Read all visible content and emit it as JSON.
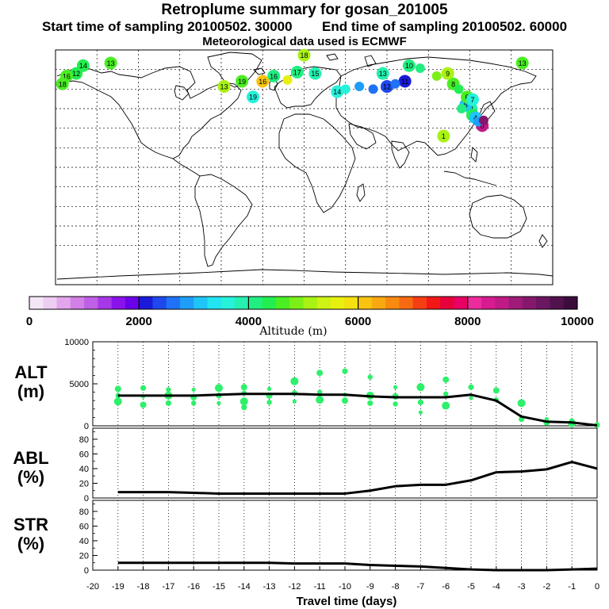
{
  "header": {
    "title": "Retroplume summary for gosan_201005",
    "start_label": "Start time of sampling 20100502. 30000",
    "end_label": "End time of sampling 20100502. 60000",
    "met_label": "Meteorological data used is ECMWF"
  },
  "colorbar": {
    "min": 0,
    "max": 10000,
    "tick_labels": [
      "0",
      "2000",
      "4000",
      "6000",
      "8000",
      "10000"
    ],
    "label": "Altitude (m)",
    "colors": [
      "#f5e6f7",
      "#eecdf2",
      "#e2a6ec",
      "#d27fe6",
      "#c060e6",
      "#a738e8",
      "#8a12eb",
      "#6a00ea",
      "#1a1ad8",
      "#1e48ee",
      "#1f72f5",
      "#1e9ef8",
      "#1ec6f7",
      "#22e4f2",
      "#26f2da",
      "#24f0b0",
      "#20ee80",
      "#22ee50",
      "#4aee22",
      "#7cf016",
      "#a8f214",
      "#cef214",
      "#e8f010",
      "#f4e010",
      "#f8c410",
      "#f8a810",
      "#f88a10",
      "#f66a12",
      "#f63e14",
      "#f21818",
      "#e8003c",
      "#e80064",
      "#ec2c9c",
      "#d61a90",
      "#c01a86",
      "#a01a7a",
      "#84186c",
      "#6a1660",
      "#52124e",
      "#3c0c3c"
    ]
  },
  "map": {
    "plume_points": [
      {
        "lon": 101,
        "lat": 24,
        "alt": 5000,
        "label": "1"
      },
      {
        "lon": 121,
        "lat": 45,
        "alt": 3900,
        "label": "2"
      },
      {
        "lon": 122,
        "lat": 40,
        "alt": 4400,
        "label": "3"
      },
      {
        "lon": 124,
        "lat": 38,
        "alt": 3000,
        "label": "4"
      },
      {
        "lon": 117,
        "lat": 48,
        "alt": 3200,
        "label": "5"
      },
      {
        "lon": 118,
        "lat": 54,
        "alt": 4500,
        "label": "6"
      },
      {
        "lon": 122,
        "lat": 52,
        "alt": 3600,
        "label": "7"
      },
      {
        "lon": 108,
        "lat": 64,
        "alt": 4600,
        "label": "8"
      },
      {
        "lon": 104,
        "lat": 72,
        "alt": 5200,
        "label": "9"
      },
      {
        "lon": 76,
        "lat": 78,
        "alt": 4200,
        "label": "10"
      },
      {
        "lon": 73,
        "lat": 66,
        "alt": 2200,
        "label": "11"
      },
      {
        "lon": 60,
        "lat": 62,
        "alt": 2300,
        "label": "12"
      },
      {
        "lon": 57,
        "lat": 72,
        "alt": 3800,
        "label": "13"
      },
      {
        "lon": 24,
        "lat": 58,
        "alt": 3700,
        "label": "14"
      },
      {
        "lon": 8,
        "lat": 72,
        "alt": 3900,
        "label": "15"
      },
      {
        "lon": -22,
        "lat": 70,
        "alt": 4100,
        "label": "16"
      },
      {
        "lon": -5,
        "lat": 73,
        "alt": 4000,
        "label": "17"
      },
      {
        "lon": 0,
        "lat": 86,
        "alt": 5200,
        "label": "18"
      },
      {
        "lon": -37,
        "lat": 54,
        "alt": 3500,
        "label": "19"
      },
      {
        "lon": 129,
        "lat": 32,
        "alt": 8600,
        "label": "0"
      },
      {
        "lon": 126,
        "lat": 35,
        "alt": 2800,
        "label": ""
      },
      {
        "lon": 114,
        "lat": 45,
        "alt": 4000,
        "label": ""
      },
      {
        "lon": 112,
        "lat": 60,
        "alt": 4300,
        "label": ""
      },
      {
        "lon": 84,
        "lat": 76,
        "alt": 4200,
        "label": ""
      },
      {
        "lon": 66,
        "lat": 64,
        "alt": 2500,
        "label": ""
      },
      {
        "lon": 50,
        "lat": 60,
        "alt": 2600,
        "label": ""
      },
      {
        "lon": 40,
        "lat": 62,
        "alt": 2800,
        "label": ""
      },
      {
        "lon": 30,
        "lat": 60,
        "alt": 3600,
        "label": ""
      },
      {
        "lon": 96,
        "lat": 70,
        "alt": 4900,
        "label": ""
      },
      {
        "lon": 130,
        "lat": 36,
        "alt": 9200,
        "label": ""
      },
      {
        "lon": -160,
        "lat": 78,
        "alt": 4300,
        "label": "14"
      },
      {
        "lon": -140,
        "lat": 80,
        "alt": 4500,
        "label": "13"
      },
      {
        "lon": -165,
        "lat": 72,
        "alt": 4400,
        "label": "12"
      },
      {
        "lon": -172,
        "lat": 70,
        "alt": 4600,
        "label": "16"
      },
      {
        "lon": -175,
        "lat": 64,
        "alt": 4700,
        "label": "18"
      },
      {
        "lon": 158,
        "lat": 80,
        "alt": 4600,
        "label": "13"
      },
      {
        "lon": -45,
        "lat": 66,
        "alt": 4700,
        "label": "19"
      },
      {
        "lon": -58,
        "lat": 62,
        "alt": 5000,
        "label": "13"
      },
      {
        "lon": -30,
        "lat": 66,
        "alt": 6200,
        "label": "16"
      },
      {
        "lon": -12,
        "lat": 67,
        "alt": 5600,
        "label": ""
      }
    ]
  },
  "panels": {
    "alt": {
      "label_line1": "ALT",
      "label_line2": "(m)",
      "ymin": 0,
      "ymax": 10000,
      "tick_labels": [
        "0",
        "5000",
        "10000"
      ],
      "mean_x": [
        -19,
        -18,
        -17,
        -16,
        -15,
        -14,
        -13,
        -12,
        -11,
        -10,
        -9,
        -8,
        -7,
        -6,
        -5,
        -4,
        -3,
        -2,
        -1,
        0
      ],
      "mean_y": [
        3600,
        3600,
        3600,
        3600,
        3700,
        3800,
        3800,
        3800,
        3700,
        3700,
        3500,
        3400,
        3400,
        3400,
        3700,
        3000,
        1100,
        500,
        400,
        50
      ],
      "scatter": [
        {
          "x": -19,
          "y": 4400
        },
        {
          "x": -19,
          "y": 3600
        },
        {
          "x": -19,
          "y": 2900
        },
        {
          "x": -18,
          "y": 4500
        },
        {
          "x": -18,
          "y": 3500
        },
        {
          "x": -18,
          "y": 2500
        },
        {
          "x": -17,
          "y": 4300
        },
        {
          "x": -17,
          "y": 3600
        },
        {
          "x": -17,
          "y": 2700
        },
        {
          "x": -16,
          "y": 4300
        },
        {
          "x": -16,
          "y": 3400
        },
        {
          "x": -16,
          "y": 2700
        },
        {
          "x": -15,
          "y": 4500
        },
        {
          "x": -15,
          "y": 3600
        },
        {
          "x": -15,
          "y": 2700
        },
        {
          "x": -14,
          "y": 4600
        },
        {
          "x": -14,
          "y": 3900
        },
        {
          "x": -14,
          "y": 2900
        },
        {
          "x": -14,
          "y": 2200
        },
        {
          "x": -13,
          "y": 4400
        },
        {
          "x": -13,
          "y": 3600
        },
        {
          "x": -13,
          "y": 2800
        },
        {
          "x": -12,
          "y": 5300
        },
        {
          "x": -12,
          "y": 3900
        },
        {
          "x": -12,
          "y": 2900
        },
        {
          "x": -11,
          "y": 6300
        },
        {
          "x": -11,
          "y": 4000
        },
        {
          "x": -11,
          "y": 3100
        },
        {
          "x": -10,
          "y": 6500
        },
        {
          "x": -10,
          "y": 3700
        },
        {
          "x": -10,
          "y": 3000
        },
        {
          "x": -9,
          "y": 5800
        },
        {
          "x": -9,
          "y": 3600
        },
        {
          "x": -9,
          "y": 2700
        },
        {
          "x": -8,
          "y": 4600
        },
        {
          "x": -8,
          "y": 3500
        },
        {
          "x": -8,
          "y": 2600
        },
        {
          "x": -7,
          "y": 4600
        },
        {
          "x": -7,
          "y": 2800
        },
        {
          "x": -7,
          "y": 1600
        },
        {
          "x": -6,
          "y": 5500
        },
        {
          "x": -6,
          "y": 3800
        },
        {
          "x": -6,
          "y": 2400
        },
        {
          "x": -5,
          "y": 4600
        },
        {
          "x": -5,
          "y": 3300
        },
        {
          "x": -4,
          "y": 4200
        },
        {
          "x": -4,
          "y": 3100
        },
        {
          "x": -3,
          "y": 2700
        },
        {
          "x": -3,
          "y": 800
        },
        {
          "x": -2,
          "y": 800
        },
        {
          "x": -2,
          "y": 400
        },
        {
          "x": -1,
          "y": 600
        },
        {
          "x": -1,
          "y": 300
        },
        {
          "x": 0,
          "y": 100
        }
      ]
    },
    "abl": {
      "label_line1": "ABL",
      "label_line2": "(%)",
      "ymin": 0,
      "ymax": 95,
      "tick_labels": [
        "0",
        "20",
        "40",
        "60",
        "80"
      ],
      "x": [
        -19,
        -18,
        -17,
        -16,
        -15,
        -14,
        -13,
        -12,
        -11,
        -10,
        -9,
        -8,
        -7,
        -6,
        -5,
        -4,
        -3,
        -2,
        -1,
        0
      ],
      "y": [
        8,
        8,
        8,
        7,
        6,
        6,
        6,
        6,
        6,
        6,
        10,
        16,
        18,
        18,
        24,
        35,
        36,
        39,
        49,
        40
      ]
    },
    "str": {
      "label_line1": "STR",
      "label_line2": "(%)",
      "ymin": 0,
      "ymax": 95,
      "tick_labels": [
        "0",
        "20",
        "40",
        "60",
        "80"
      ],
      "x": [
        -19,
        -18,
        -17,
        -16,
        -15,
        -14,
        -13,
        -12,
        -11,
        -10,
        -9,
        -8,
        -7,
        -6,
        -5,
        -4,
        -3,
        -2,
        -1,
        0
      ],
      "y": [
        10,
        10,
        10,
        10,
        10,
        10,
        10,
        9,
        9,
        9,
        7,
        6,
        5,
        3,
        1,
        0,
        0,
        0,
        1,
        2
      ]
    }
  },
  "xaxis": {
    "min": -20,
    "max": 0,
    "tick_labels": [
      "-20",
      "-19",
      "-18",
      "-17",
      "-16",
      "-15",
      "-14",
      "-13",
      "-12",
      "-11",
      "-10",
      "-9",
      "-8",
      "-7",
      "-6",
      "-5",
      "-4",
      "-3",
      "-2",
      "-1",
      "0"
    ],
    "label": "Travel time (days)"
  },
  "chart_data": {
    "type": "line",
    "title": "Retroplume summary for gosan_201005",
    "xlabel": "Travel time (days)",
    "x": [
      -19,
      -18,
      -17,
      -16,
      -15,
      -14,
      -13,
      -12,
      -11,
      -10,
      -9,
      -8,
      -7,
      -6,
      -5,
      -4,
      -3,
      -2,
      -1,
      0
    ],
    "xlim": [
      -20,
      0
    ],
    "series": [
      {
        "name": "ALT (m)",
        "ylim": [
          0,
          10000
        ],
        "values": [
          3600,
          3600,
          3600,
          3600,
          3700,
          3800,
          3800,
          3800,
          3700,
          3700,
          3500,
          3400,
          3400,
          3400,
          3700,
          3000,
          1100,
          500,
          400,
          50
        ]
      },
      {
        "name": "ABL (%)",
        "ylim": [
          0,
          95
        ],
        "values": [
          8,
          8,
          8,
          7,
          6,
          6,
          6,
          6,
          6,
          6,
          10,
          16,
          18,
          18,
          24,
          35,
          36,
          39,
          49,
          40
        ]
      },
      {
        "name": "STR (%)",
        "ylim": [
          0,
          95
        ],
        "values": [
          10,
          10,
          10,
          10,
          10,
          10,
          10,
          9,
          9,
          9,
          7,
          6,
          5,
          3,
          1,
          0,
          0,
          0,
          1,
          2
        ]
      }
    ],
    "colorbar": {
      "label": "Altitude (m)",
      "range": [
        0,
        10000
      ]
    }
  }
}
